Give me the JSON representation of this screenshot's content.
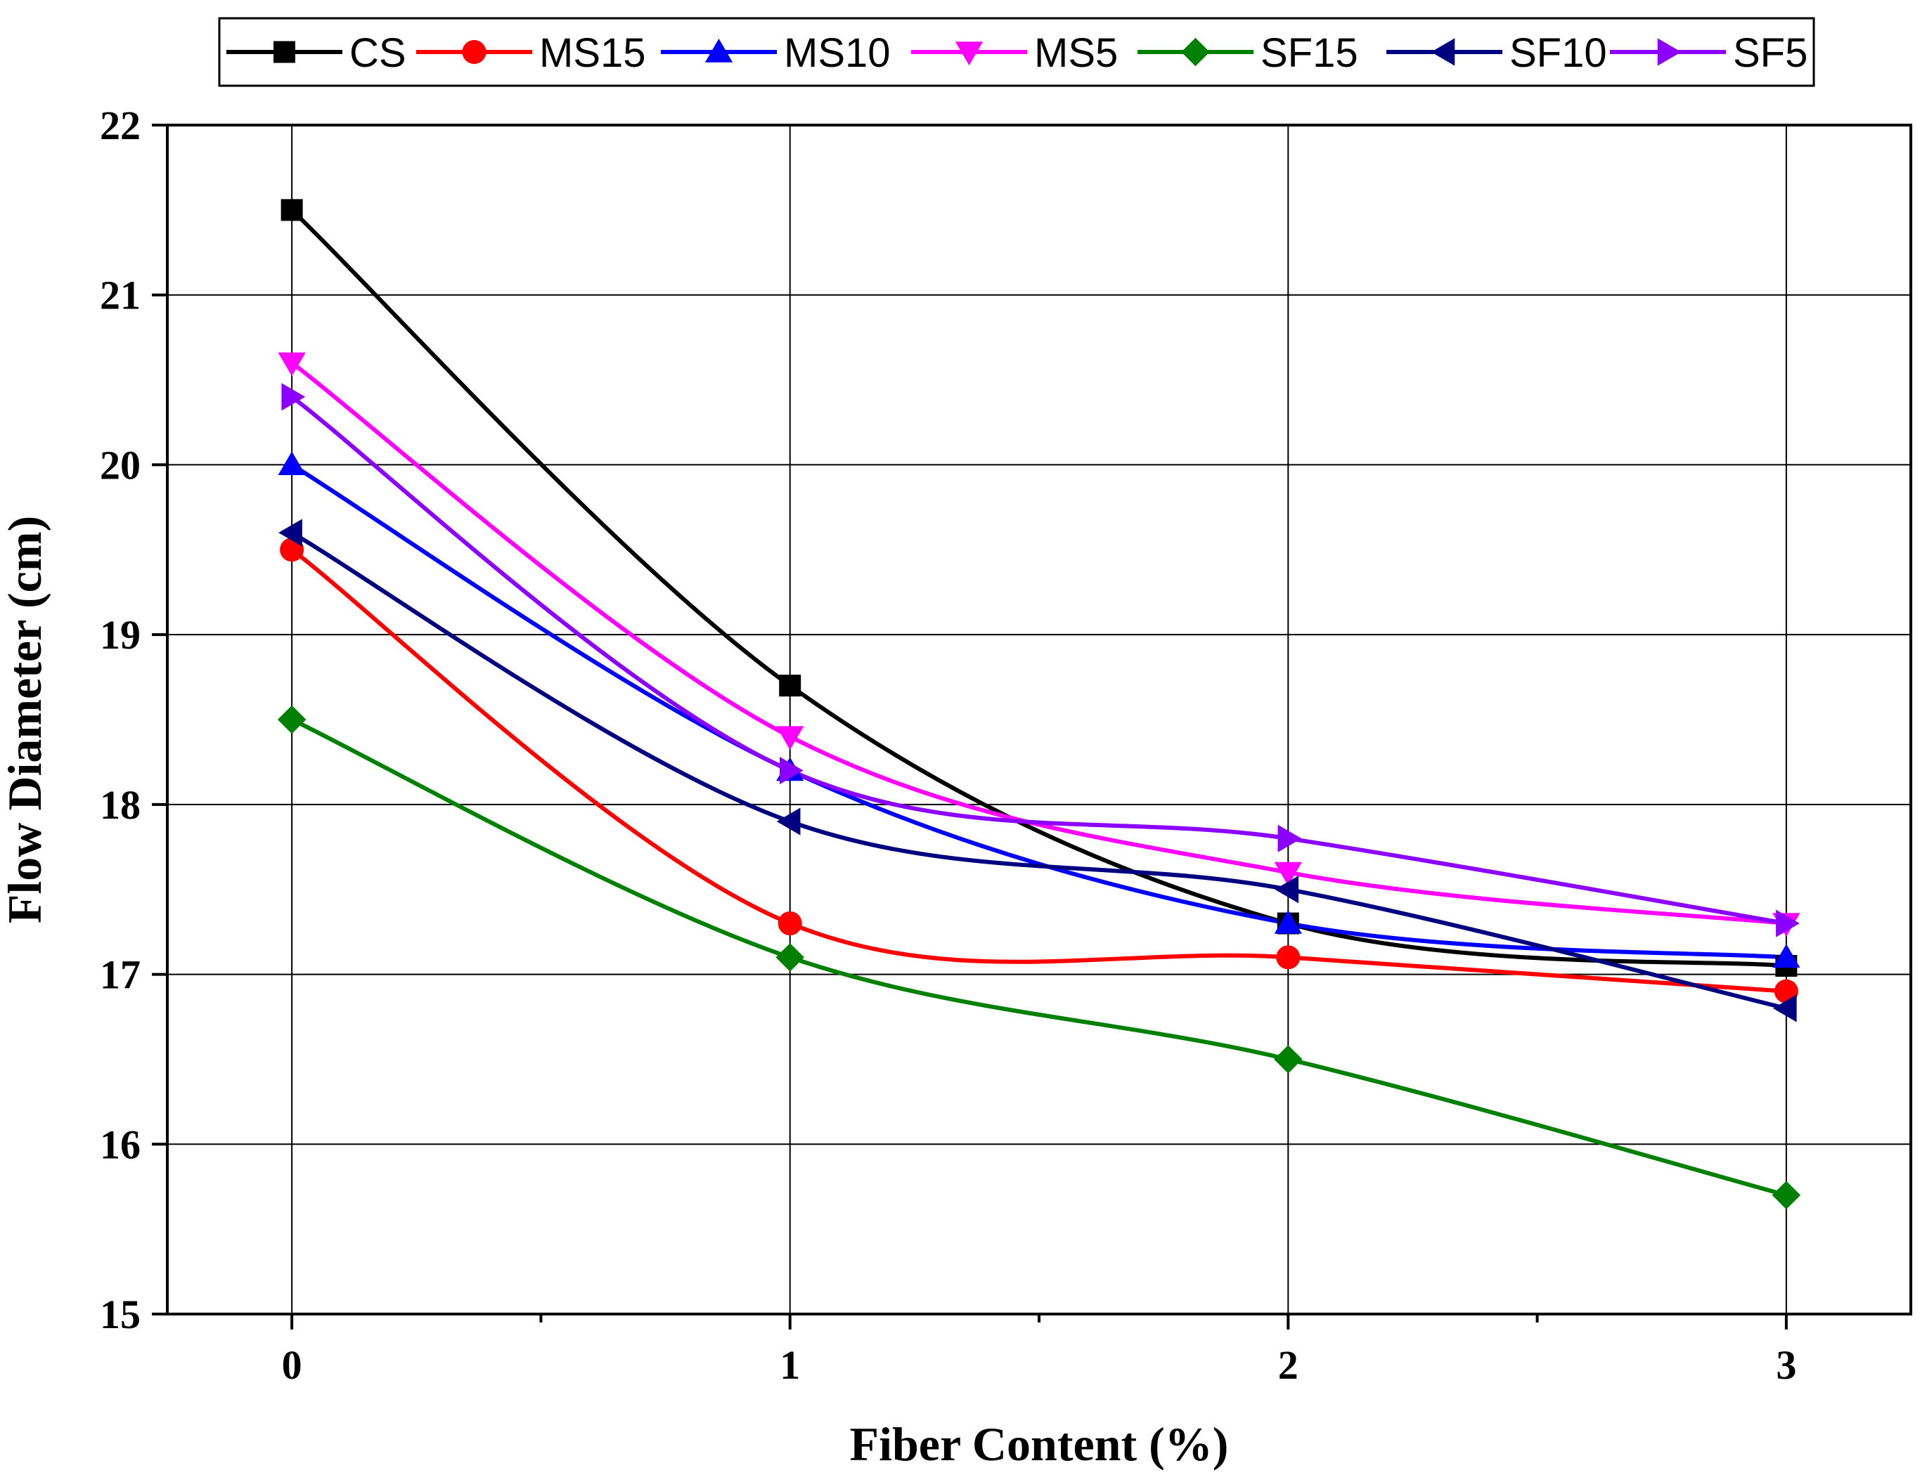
{
  "chart_data": {
    "type": "line",
    "title": "",
    "xlabel": "Fiber Content (%)",
    "ylabel": "Flow Diameter (cm)",
    "x": [
      0,
      1,
      2,
      3
    ],
    "x_tick_labels": [
      "0",
      "1",
      "2",
      "3"
    ],
    "y_tick_labels": [
      "15",
      "16",
      "17",
      "18",
      "19",
      "20",
      "21",
      "22"
    ],
    "xlim": [
      -0.25,
      3.25
    ],
    "ylim": [
      15,
      22
    ],
    "grid": true,
    "legend_placement": "top-center",
    "series": [
      {
        "name": "CS",
        "color": "#000000",
        "marker": "square",
        "values": [
          21.5,
          18.7,
          17.3,
          17.05
        ]
      },
      {
        "name": "MS15",
        "color": "#ff0000",
        "marker": "circle",
        "values": [
          19.5,
          17.3,
          17.1,
          16.9
        ]
      },
      {
        "name": "MS10",
        "color": "#0000ff",
        "marker": "triangle-up",
        "values": [
          20.0,
          18.2,
          17.3,
          17.1
        ]
      },
      {
        "name": "MS5",
        "color": "#ff00ff",
        "marker": "triangle-down",
        "values": [
          20.6,
          18.4,
          17.6,
          17.3
        ]
      },
      {
        "name": "SF15",
        "color": "#008000",
        "marker": "diamond",
        "values": [
          18.5,
          17.1,
          16.5,
          15.7
        ]
      },
      {
        "name": "SF10",
        "color": "#000080",
        "marker": "triangle-left",
        "values": [
          19.6,
          17.9,
          17.5,
          16.8
        ]
      },
      {
        "name": "SF5",
        "color": "#8b00ff",
        "marker": "triangle-right",
        "values": [
          20.4,
          18.2,
          17.8,
          17.3
        ]
      }
    ]
  }
}
